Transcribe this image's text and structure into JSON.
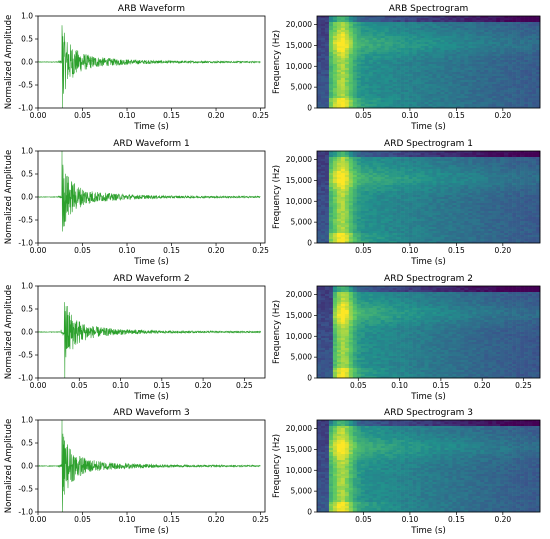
{
  "colors": {
    "waveform": "#2ca02c",
    "spec_dark": "#440154",
    "spec_mid_blue": "#3b528b",
    "spec_teal": "#21918c",
    "spec_green": "#5ec962",
    "spec_yellow": "#fde725"
  },
  "chart_data": [
    {
      "type": "line",
      "title": "ARB Waveform",
      "xlabel": "Time (s)",
      "ylabel": "Normalized Amplitude",
      "xlim": [
        0,
        0.255
      ],
      "ylim": [
        -1.0,
        1.0
      ],
      "xticks": [
        "0.00",
        "0.05",
        "0.10",
        "0.15",
        "0.20",
        "0.25"
      ],
      "yticks": [
        "-1.0",
        "-0.5",
        "0.0",
        "0.5",
        "1.0"
      ],
      "duration": 0.25,
      "onset": 0.027,
      "peak_pos": 0.8,
      "peak_neg": -1.0,
      "series": [
        {
          "x": [
            0,
            0.02,
            0.027,
            0.03,
            0.05,
            0.1,
            0.15,
            0.2,
            0.25
          ],
          "y": [
            0,
            0,
            0.8,
            -0.6,
            0.15,
            0.04,
            0.02,
            0.01,
            0
          ]
        }
      ]
    },
    {
      "type": "heatmap",
      "title": "ARB Spectrogram",
      "xlabel": "Time (s)",
      "ylabel": "Frequency (Hz)",
      "xlim": [
        0,
        0.24
      ],
      "ylim": [
        0,
        22050
      ],
      "xticks": [
        "0.05",
        "0.10",
        "0.15",
        "0.20"
      ],
      "yticks": [
        "0",
        "5,000",
        "10,000",
        "15,000",
        "20,000"
      ],
      "onset": 0.027
    },
    {
      "type": "line",
      "title": "ARD Waveform 1",
      "xlabel": "Time (s)",
      "ylabel": "Normalized Amplitude",
      "xlim": [
        0,
        0.255
      ],
      "ylim": [
        -1.0,
        1.0
      ],
      "xticks": [
        "0.00",
        "0.05",
        "0.10",
        "0.15",
        "0.20",
        "0.25"
      ],
      "yticks": [
        "-1.0",
        "-0.5",
        "0.0",
        "0.5",
        "1.0"
      ],
      "duration": 0.25,
      "onset": 0.027,
      "peak_pos": 1.0,
      "peak_neg": -0.75,
      "series": [
        {
          "x": [
            0,
            0.02,
            0.027,
            0.03,
            0.05,
            0.1,
            0.15,
            0.2,
            0.25
          ],
          "y": [
            0,
            0,
            1.0,
            -0.7,
            0.3,
            0.05,
            0.02,
            0.01,
            0
          ]
        }
      ]
    },
    {
      "type": "heatmap",
      "title": "ARD Spectrogram 1",
      "xlabel": "Time (s)",
      "ylabel": "Frequency (Hz)",
      "xlim": [
        0,
        0.24
      ],
      "ylim": [
        0,
        22050
      ],
      "xticks": [
        "0.05",
        "0.10",
        "0.15",
        "0.20"
      ],
      "yticks": [
        "0",
        "5,000",
        "10,000",
        "15,000",
        "20,000"
      ],
      "onset": 0.027
    },
    {
      "type": "line",
      "title": "ARD Waveform 2",
      "xlabel": "Time (s)",
      "ylabel": "Normalized Amplitude",
      "xlim": [
        0,
        0.275
      ],
      "ylim": [
        -1.0,
        1.0
      ],
      "xticks": [
        "0.00",
        "0.05",
        "0.10",
        "0.15",
        "0.20",
        "0.25"
      ],
      "yticks": [
        "-1.0",
        "-0.5",
        "0.0",
        "0.5",
        "1.0"
      ],
      "duration": 0.27,
      "onset": 0.032,
      "peak_pos": 0.65,
      "peak_neg": -1.0,
      "series": [
        {
          "x": [
            0,
            0.025,
            0.032,
            0.035,
            0.05,
            0.1,
            0.15,
            0.2,
            0.27
          ],
          "y": [
            0,
            0.05,
            0.65,
            -0.6,
            0.25,
            -0.03,
            -0.02,
            -0.01,
            0.02
          ]
        }
      ]
    },
    {
      "type": "heatmap",
      "title": "ARD Spectrogram 2",
      "xlabel": "Time (s)",
      "ylabel": "Frequency (Hz)",
      "xlim": [
        0,
        0.27
      ],
      "ylim": [
        0,
        22050
      ],
      "xticks": [
        "0.05",
        "0.10",
        "0.15",
        "0.20",
        "0.25"
      ],
      "yticks": [
        "0",
        "5,000",
        "10,000",
        "15,000",
        "20,000"
      ],
      "onset": 0.032
    },
    {
      "type": "line",
      "title": "ARD Waveform 3",
      "xlabel": "Time (s)",
      "ylabel": "Normalized Amplitude",
      "xlim": [
        0,
        0.255
      ],
      "ylim": [
        -1.0,
        1.0
      ],
      "xticks": [
        "0.00",
        "0.05",
        "0.10",
        "0.15",
        "0.20",
        "0.25"
      ],
      "yticks": [
        "-1.0",
        "-0.5",
        "0.0",
        "0.5",
        "1.0"
      ],
      "duration": 0.25,
      "onset": 0.027,
      "peak_pos": 1.0,
      "peak_neg": -1.0,
      "series": [
        {
          "x": [
            0,
            0.02,
            0.027,
            0.03,
            0.05,
            0.1,
            0.15,
            0.2,
            0.25
          ],
          "y": [
            0,
            0,
            1.0,
            -0.85,
            0.3,
            0.03,
            0.01,
            0.01,
            0
          ]
        }
      ]
    },
    {
      "type": "heatmap",
      "title": "ARD Spectrogram 3",
      "xlabel": "Time (s)",
      "ylabel": "Frequency (Hz)",
      "xlim": [
        0,
        0.24
      ],
      "ylim": [
        0,
        22050
      ],
      "xticks": [
        "0.05",
        "0.10",
        "0.15",
        "0.20"
      ],
      "yticks": [
        "0",
        "5,000",
        "10,000",
        "15,000",
        "20,000"
      ],
      "onset": 0.027
    }
  ]
}
